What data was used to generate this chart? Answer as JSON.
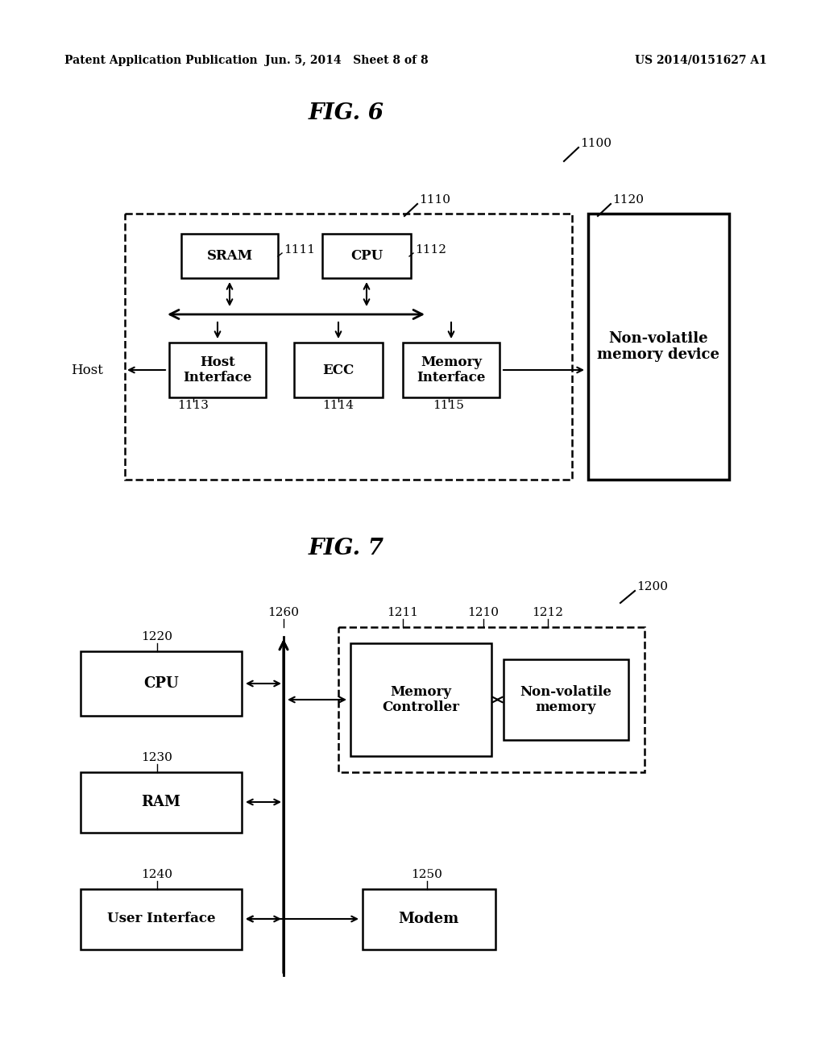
{
  "bg_color": "#ffffff",
  "header_left": "Patent Application Publication",
  "header_center": "Jun. 5, 2014   Sheet 8 of 8",
  "header_right": "US 2014/0151627 A1",
  "fig6_title": "FIG. 6",
  "fig7_title": "FIG. 7",
  "fig6_label_1100": "1100",
  "fig6_label_1110": "1110",
  "fig6_label_1120": "1120",
  "fig6_label_1111": "1111",
  "fig6_label_1112": "1112",
  "fig6_label_1113": "1113",
  "fig6_label_1114": "1114",
  "fig6_label_1115": "1115",
  "fig6_host_label": "Host",
  "fig6_sram_label": "SRAM",
  "fig6_cpu_label": "CPU",
  "fig6_host_interface_label": "Host\nInterface",
  "fig6_ecc_label": "ECC",
  "fig6_memory_interface_label": "Memory\nInterface",
  "fig6_nonvolatile_label": "Non-volatile\nmemory device",
  "fig7_label_1200": "1200",
  "fig7_label_1210": "1210",
  "fig7_label_1211": "1211",
  "fig7_label_1212": "1212",
  "fig7_label_1220": "1220",
  "fig7_label_1230": "1230",
  "fig7_label_1240": "1240",
  "fig7_label_1250": "1250",
  "fig7_label_1260": "1260",
  "fig7_cpu_label": "CPU",
  "fig7_ram_label": "RAM",
  "fig7_user_interface_label": "User Interface",
  "fig7_memory_controller_label": "Memory\nController",
  "fig7_nonvolatile_label": "Non-volatile\nmemory",
  "fig7_modem_label": "Modem"
}
